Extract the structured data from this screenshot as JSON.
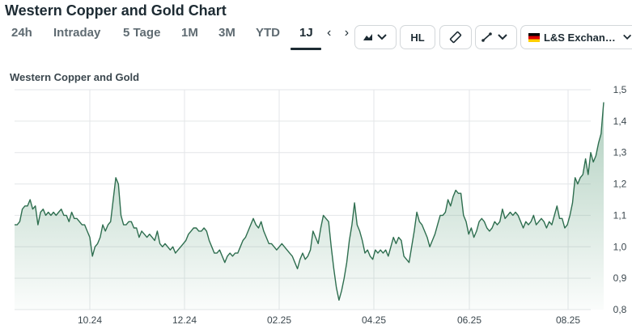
{
  "header": {
    "title": "Western Copper and Gold Chart"
  },
  "timeframes": [
    {
      "label": "24h"
    },
    {
      "label": "Intraday"
    },
    {
      "label": "5 Tage"
    },
    {
      "label": "1M"
    },
    {
      "label": "3M"
    },
    {
      "label": "YTD"
    },
    {
      "label": "1J"
    }
  ],
  "active_timeframe": "1J",
  "scroll_arrows": "‹ ›",
  "tools": {
    "chart_type_icon": "mountain-chart-icon",
    "hl_label": "HL",
    "ruler_icon": "ruler-icon",
    "draw_icon": "line-draw-icon",
    "exchange_label": "L&S Exchan…",
    "exchange_flag": "germany-flag"
  },
  "colors": {
    "line": "#2e6e4f",
    "fill_top": "#6fa88a",
    "grid": "#e3e6e8",
    "accent": "#1d2b33"
  },
  "chart_data": {
    "type": "area",
    "title": "Western Copper and Gold",
    "ylim": [
      0.8,
      1.5
    ],
    "y_ticks": [
      "1,5",
      "1,4",
      "1,3",
      "1,2",
      "1,1",
      "1,0",
      "0,9",
      "0,8"
    ],
    "x_ticks": [
      "10.24",
      "12.24",
      "02.25",
      "04.25",
      "06.25",
      "08.25"
    ],
    "grid": true,
    "values": [
      1.07,
      1.07,
      1.08,
      1.12,
      1.13,
      1.13,
      1.15,
      1.12,
      1.13,
      1.07,
      1.11,
      1.12,
      1.1,
      1.11,
      1.1,
      1.11,
      1.1,
      1.11,
      1.12,
      1.1,
      1.1,
      1.08,
      1.11,
      1.09,
      1.09,
      1.08,
      1.07,
      1.07,
      1.05,
      1.03,
      0.97,
      1.0,
      1.01,
      1.03,
      1.07,
      1.05,
      1.07,
      1.08,
      1.15,
      1.22,
      1.2,
      1.1,
      1.07,
      1.07,
      1.08,
      1.08,
      1.06,
      1.06,
      1.03,
      1.05,
      1.04,
      1.03,
      1.04,
      1.03,
      1.02,
      1.05,
      1.01,
      1.0,
      1.01,
      1.0,
      0.99,
      1.0,
      0.98,
      0.99,
      1.0,
      1.01,
      1.02,
      1.04,
      1.05,
      1.06,
      1.06,
      1.05,
      1.05,
      1.06,
      1.05,
      1.02,
      1.0,
      0.98,
      0.98,
      0.99,
      0.97,
      0.95,
      0.97,
      0.98,
      0.97,
      0.98,
      0.98,
      1.0,
      1.02,
      1.03,
      1.05,
      1.07,
      1.09,
      1.07,
      1.06,
      1.08,
      1.05,
      1.03,
      1.01,
      1.01,
      1.0,
      0.99,
      1.0,
      1.01,
      1.0,
      0.99,
      0.98,
      0.97,
      0.95,
      0.93,
      0.96,
      0.98,
      0.96,
      0.97,
      0.99,
      1.05,
      1.03,
      1.01,
      1.06,
      1.1,
      1.09,
      1.08,
      1.0,
      0.93,
      0.87,
      0.83,
      0.86,
      0.9,
      0.95,
      1.02,
      1.07,
      1.14,
      1.07,
      1.05,
      1.02,
      0.98,
      0.99,
      0.97,
      0.96,
      0.99,
      0.98,
      0.99,
      0.98,
      0.99,
      0.97,
      1.0,
      1.03,
      1.01,
      1.03,
      1.02,
      0.97,
      0.96,
      0.95,
      1.0,
      1.05,
      1.11,
      1.08,
      1.07,
      1.05,
      1.03,
      1.0,
      1.02,
      1.04,
      1.07,
      1.1,
      1.1,
      1.11,
      1.15,
      1.13,
      1.16,
      1.18,
      1.17,
      1.17,
      1.1,
      1.08,
      1.04,
      1.06,
      1.03,
      1.05,
      1.08,
      1.09,
      1.08,
      1.06,
      1.05,
      1.06,
      1.08,
      1.07,
      1.08,
      1.12,
      1.09,
      1.1,
      1.11,
      1.1,
      1.11,
      1.1,
      1.08,
      1.06,
      1.08,
      1.07,
      1.08,
      1.1,
      1.07,
      1.08,
      1.09,
      1.08,
      1.06,
      1.08,
      1.07,
      1.1,
      1.13,
      1.09,
      1.09,
      1.06,
      1.07,
      1.1,
      1.14,
      1.22,
      1.2,
      1.22,
      1.23,
      1.28,
      1.23,
      1.3,
      1.27,
      1.29,
      1.33,
      1.36,
      1.46
    ]
  }
}
